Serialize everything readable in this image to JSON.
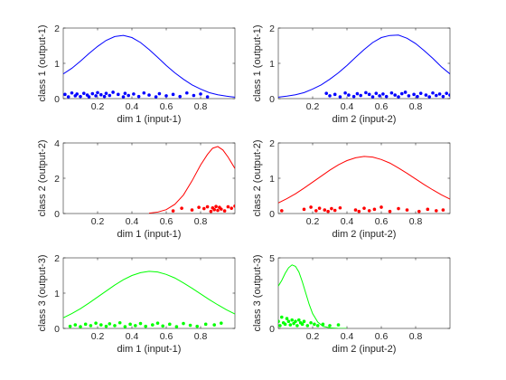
{
  "figure": {
    "background": "#ffffff",
    "grid": false
  },
  "chart_data": [
    {
      "type": "line",
      "row": 0,
      "col": 0,
      "xlabel": "dim 1 (input-1)",
      "ylabel": "class 1 (output-1)",
      "xlim": [
        0,
        1
      ],
      "ylim": [
        0,
        2
      ],
      "xticks": [
        0.2,
        0.4,
        0.6,
        0.8
      ],
      "xtick_labels": [
        "0.2",
        "0.4",
        "0.6",
        "0.8"
      ],
      "yticks": [
        0,
        1,
        2
      ],
      "ytick_labels": [
        "0",
        "1",
        "2"
      ],
      "color": "#0000ff",
      "curve": {
        "x": [
          0,
          0.05,
          0.1,
          0.15,
          0.2,
          0.25,
          0.3,
          0.35,
          0.4,
          0.45,
          0.5,
          0.55,
          0.6,
          0.65,
          0.7,
          0.75,
          0.8,
          0.85,
          0.9,
          0.95,
          1.0
        ],
        "y": [
          0.7,
          0.86,
          1.06,
          1.28,
          1.48,
          1.65,
          1.76,
          1.79,
          1.73,
          1.59,
          1.39,
          1.17,
          0.94,
          0.73,
          0.55,
          0.39,
          0.27,
          0.17,
          0.11,
          0.07,
          0.04
        ]
      },
      "points": {
        "x": [
          0.01,
          0.03,
          0.05,
          0.07,
          0.08,
          0.1,
          0.12,
          0.14,
          0.15,
          0.17,
          0.19,
          0.2,
          0.22,
          0.24,
          0.25,
          0.27,
          0.29,
          0.32,
          0.35,
          0.36,
          0.38,
          0.41,
          0.44,
          0.47,
          0.5,
          0.54,
          0.56,
          0.6,
          0.64,
          0.68,
          0.72,
          0.76,
          0.8,
          0.84
        ],
        "y": [
          0.12,
          0.05,
          0.16,
          0.08,
          0.13,
          0.06,
          0.15,
          0.1,
          0.05,
          0.14,
          0.08,
          0.17,
          0.11,
          0.06,
          0.15,
          0.09,
          0.18,
          0.12,
          0.05,
          0.15,
          0.09,
          0.13,
          0.06,
          0.16,
          0.1,
          0.05,
          0.14,
          0.08,
          0.12,
          0.06,
          0.16,
          0.09,
          0.13,
          0.05
        ]
      }
    },
    {
      "type": "line",
      "row": 0,
      "col": 1,
      "xlabel": "dim 2 (input-2)",
      "ylabel": "class 1 (output-1)",
      "xlim": [
        0,
        1
      ],
      "ylim": [
        0,
        2
      ],
      "xticks": [
        0.2,
        0.4,
        0.6,
        0.8
      ],
      "xtick_labels": [
        "0.2",
        "0.4",
        "0.6",
        "0.8"
      ],
      "yticks": [
        0,
        1,
        2
      ],
      "ytick_labels": [
        "0",
        "1",
        "2"
      ],
      "color": "#0000ff",
      "curve": {
        "x": [
          0,
          0.05,
          0.1,
          0.15,
          0.2,
          0.25,
          0.3,
          0.35,
          0.4,
          0.45,
          0.5,
          0.55,
          0.6,
          0.65,
          0.7,
          0.75,
          0.8,
          0.85,
          0.9,
          0.95,
          1.0
        ],
        "y": [
          0.04,
          0.07,
          0.11,
          0.17,
          0.27,
          0.39,
          0.55,
          0.73,
          0.94,
          1.17,
          1.39,
          1.59,
          1.73,
          1.79,
          1.8,
          1.71,
          1.56,
          1.36,
          1.14,
          0.9,
          0.7
        ]
      },
      "points": {
        "x": [
          0.28,
          0.3,
          0.33,
          0.36,
          0.39,
          0.41,
          0.44,
          0.46,
          0.48,
          0.51,
          0.53,
          0.55,
          0.57,
          0.59,
          0.61,
          0.63,
          0.66,
          0.68,
          0.7,
          0.72,
          0.74,
          0.76,
          0.79,
          0.81,
          0.83,
          0.86,
          0.88,
          0.9,
          0.92,
          0.94,
          0.96,
          0.98,
          1.0
        ],
        "y": [
          0.15,
          0.08,
          0.12,
          0.05,
          0.16,
          0.1,
          0.06,
          0.14,
          0.09,
          0.17,
          0.12,
          0.05,
          0.15,
          0.08,
          0.13,
          0.06,
          0.16,
          0.1,
          0.05,
          0.14,
          0.18,
          0.08,
          0.12,
          0.06,
          0.15,
          0.1,
          0.05,
          0.16,
          0.09,
          0.13,
          0.06,
          0.15,
          0.1
        ]
      }
    },
    {
      "type": "line",
      "row": 1,
      "col": 0,
      "xlabel": "dim 1 (input-1)",
      "ylabel": "class 2 (output-2)",
      "xlim": [
        0,
        1
      ],
      "ylim": [
        0,
        4
      ],
      "xticks": [
        0.2,
        0.4,
        0.6,
        0.8
      ],
      "xtick_labels": [
        "0.2",
        "0.4",
        "0.6",
        "0.8"
      ],
      "yticks": [
        0,
        2,
        4
      ],
      "ytick_labels": [
        "0",
        "2",
        "4"
      ],
      "color": "#ff0000",
      "curve": {
        "x": [
          0.5,
          0.55,
          0.6,
          0.65,
          0.7,
          0.75,
          0.8,
          0.84,
          0.87,
          0.9,
          0.93,
          0.96,
          1.0
        ],
        "y": [
          0.02,
          0.08,
          0.22,
          0.52,
          1.05,
          1.85,
          2.75,
          3.35,
          3.7,
          3.8,
          3.6,
          3.2,
          2.55
        ]
      },
      "points": {
        "x": [
          0.64,
          0.69,
          0.75,
          0.79,
          0.82,
          0.84,
          0.86,
          0.87,
          0.88,
          0.89,
          0.9,
          0.91,
          0.92,
          0.94,
          0.96,
          0.98,
          1.0
        ],
        "y": [
          0.15,
          0.3,
          0.2,
          0.35,
          0.28,
          0.38,
          0.12,
          0.32,
          0.22,
          0.4,
          0.18,
          0.35,
          0.25,
          0.15,
          0.38,
          0.3,
          0.42
        ]
      }
    },
    {
      "type": "line",
      "row": 1,
      "col": 1,
      "xlabel": "dim 2 (input-2)",
      "ylabel": "class 2 (output-2)",
      "xlim": [
        0,
        1
      ],
      "ylim": [
        0,
        2
      ],
      "xticks": [
        0.2,
        0.4,
        0.6,
        0.8
      ],
      "xtick_labels": [
        "0.2",
        "0.4",
        "0.6",
        "0.8"
      ],
      "yticks": [
        0,
        1,
        2
      ],
      "ytick_labels": [
        "0",
        "1",
        "2"
      ],
      "color": "#ff0000",
      "curve": {
        "x": [
          0,
          0.05,
          0.1,
          0.15,
          0.2,
          0.25,
          0.3,
          0.35,
          0.4,
          0.45,
          0.5,
          0.55,
          0.6,
          0.65,
          0.7,
          0.75,
          0.8,
          0.85,
          0.9,
          0.95,
          1.0
        ],
        "y": [
          0.3,
          0.42,
          0.56,
          0.72,
          0.89,
          1.06,
          1.23,
          1.38,
          1.5,
          1.58,
          1.62,
          1.6,
          1.53,
          1.43,
          1.29,
          1.14,
          0.98,
          0.82,
          0.67,
          0.53,
          0.41
        ]
      },
      "points": {
        "x": [
          0.02,
          0.15,
          0.19,
          0.22,
          0.24,
          0.27,
          0.29,
          0.31,
          0.33,
          0.36,
          0.45,
          0.47,
          0.5,
          0.53,
          0.56,
          0.6,
          0.65,
          0.7,
          0.75,
          0.82,
          0.87,
          0.92,
          0.96
        ],
        "y": [
          0.08,
          0.12,
          0.18,
          0.08,
          0.15,
          0.1,
          0.06,
          0.14,
          0.09,
          0.16,
          0.1,
          0.06,
          0.15,
          0.08,
          0.12,
          0.18,
          0.06,
          0.14,
          0.1,
          0.06,
          0.12,
          0.08,
          0.1
        ]
      }
    },
    {
      "type": "line",
      "row": 2,
      "col": 0,
      "xlabel": "dim 1 (input-1)",
      "ylabel": "class 3 (output-3)",
      "xlim": [
        0,
        1
      ],
      "ylim": [
        0,
        2
      ],
      "xticks": [
        0.2,
        0.4,
        0.6,
        0.8
      ],
      "xtick_labels": [
        "0.2",
        "0.4",
        "0.6",
        "0.8"
      ],
      "yticks": [
        0,
        1,
        2
      ],
      "ytick_labels": [
        "0",
        "1",
        "2"
      ],
      "color": "#00ff00",
      "curve": {
        "x": [
          0,
          0.05,
          0.1,
          0.15,
          0.2,
          0.25,
          0.3,
          0.35,
          0.4,
          0.45,
          0.5,
          0.55,
          0.6,
          0.65,
          0.7,
          0.75,
          0.8,
          0.85,
          0.9,
          0.95,
          1.0
        ],
        "y": [
          0.3,
          0.42,
          0.56,
          0.72,
          0.89,
          1.06,
          1.23,
          1.38,
          1.5,
          1.58,
          1.62,
          1.6,
          1.53,
          1.43,
          1.29,
          1.14,
          0.98,
          0.82,
          0.67,
          0.53,
          0.41
        ]
      },
      "points": {
        "x": [
          0.04,
          0.07,
          0.1,
          0.13,
          0.16,
          0.19,
          0.22,
          0.25,
          0.27,
          0.3,
          0.33,
          0.36,
          0.39,
          0.42,
          0.45,
          0.48,
          0.52,
          0.55,
          0.58,
          0.62,
          0.66,
          0.7,
          0.74,
          0.78,
          0.83,
          0.88,
          0.92
        ],
        "y": [
          0.06,
          0.1,
          0.05,
          0.12,
          0.08,
          0.15,
          0.1,
          0.06,
          0.13,
          0.08,
          0.16,
          0.05,
          0.12,
          0.08,
          0.14,
          0.06,
          0.1,
          0.15,
          0.07,
          0.12,
          0.05,
          0.14,
          0.09,
          0.06,
          0.12,
          0.1,
          0.15
        ]
      }
    },
    {
      "type": "line",
      "row": 2,
      "col": 1,
      "xlabel": "dim 2 (input-2)",
      "ylabel": "class 3 (output-3)",
      "xlim": [
        0,
        1
      ],
      "ylim": [
        0,
        5
      ],
      "xticks": [
        0.2,
        0.4,
        0.6,
        0.8
      ],
      "xtick_labels": [
        "0.2",
        "0.4",
        "0.6",
        "0.8"
      ],
      "yticks": [
        0,
        5
      ],
      "ytick_labels": [
        "0",
        "5"
      ],
      "color": "#00ff00",
      "curve": {
        "x": [
          0,
          0.02,
          0.04,
          0.06,
          0.08,
          0.1,
          0.12,
          0.14,
          0.16,
          0.18,
          0.2,
          0.23,
          0.26,
          0.3,
          0.35,
          0.4
        ],
        "y": [
          3.0,
          3.4,
          3.9,
          4.3,
          4.5,
          4.4,
          4.0,
          3.3,
          2.5,
          1.7,
          1.05,
          0.45,
          0.15,
          0.04,
          0.0,
          0.0
        ]
      },
      "points": {
        "x": [
          0.0,
          0.01,
          0.02,
          0.03,
          0.04,
          0.05,
          0.06,
          0.07,
          0.08,
          0.09,
          0.1,
          0.11,
          0.12,
          0.13,
          0.14,
          0.15,
          0.17,
          0.19,
          0.21,
          0.23,
          0.26,
          0.3,
          0.35
        ],
        "y": [
          0.5,
          0.2,
          0.8,
          0.4,
          0.3,
          0.7,
          0.5,
          0.25,
          0.6,
          0.35,
          0.5,
          0.2,
          0.6,
          0.4,
          0.3,
          0.5,
          0.2,
          0.4,
          0.3,
          0.2,
          0.3,
          0.2,
          0.25
        ]
      }
    }
  ]
}
